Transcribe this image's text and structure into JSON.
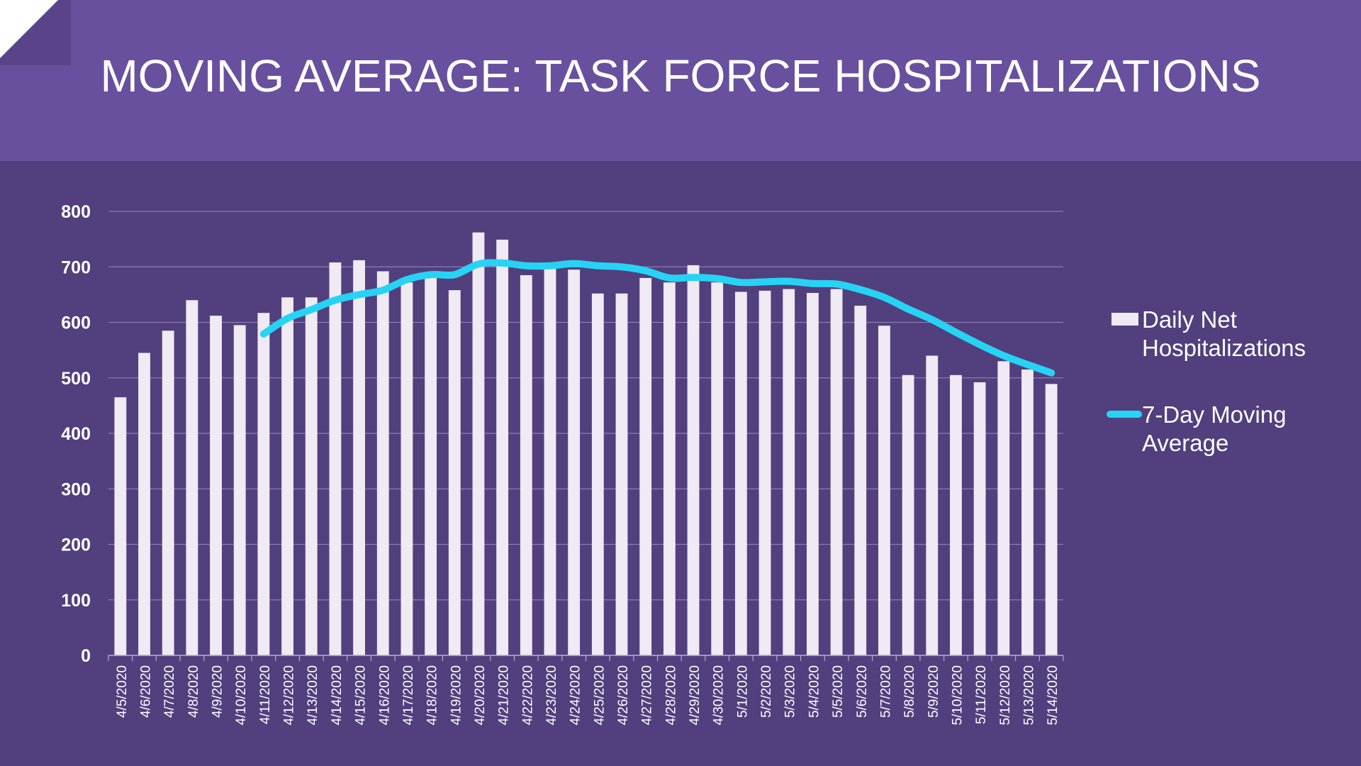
{
  "header": {
    "title": "MOVING AVERAGE: TASK FORCE HOSPITALIZATIONS"
  },
  "chart_data": {
    "type": "bar",
    "categories": [
      "4/5/2020",
      "4/6/2020",
      "4/7/2020",
      "4/8/2020",
      "4/9/2020",
      "4/10/2020",
      "4/11/2020",
      "4/12/2020",
      "4/13/2020",
      "4/14/2020",
      "4/15/2020",
      "4/16/2020",
      "4/17/2020",
      "4/18/2020",
      "4/19/2020",
      "4/20/2020",
      "4/21/2020",
      "4/22/2020",
      "4/23/2020",
      "4/24/2020",
      "4/25/2020",
      "4/26/2020",
      "4/27/2020",
      "4/28/2020",
      "4/29/2020",
      "4/30/2020",
      "5/1/2020",
      "5/2/2020",
      "5/3/2020",
      "5/4/2020",
      "5/5/2020",
      "5/6/2020",
      "5/7/2020",
      "5/8/2020",
      "5/9/2020",
      "5/10/2020",
      "5/11/2020",
      "5/12/2020",
      "5/13/2020",
      "5/14/2020"
    ],
    "series": [
      {
        "name": "Daily Net Hospitalizations",
        "type": "bar",
        "color": "#efeaf3",
        "values": [
          465,
          545,
          585,
          640,
          612,
          595,
          617,
          645,
          645,
          708,
          712,
          692,
          672,
          680,
          658,
          762,
          749,
          685,
          698,
          695,
          652,
          652,
          680,
          672,
          703,
          672,
          655,
          657,
          660,
          653,
          660,
          630,
          594,
          505,
          540,
          505,
          492,
          530,
          515,
          489
        ]
      },
      {
        "name": "7-Day Moving Average",
        "type": "line",
        "color": "#27d3f4",
        "values": [
          null,
          null,
          null,
          null,
          null,
          null,
          579,
          607,
          623,
          640,
          650,
          658,
          677,
          686,
          686,
          705,
          707,
          702,
          702,
          706,
          702,
          700,
          693,
          680,
          681,
          679,
          672,
          673,
          674,
          670,
          669,
          659,
          645,
          624,
          605,
          582,
          560,
          540,
          524,
          509
        ]
      }
    ],
    "ylim": [
      0,
      800
    ],
    "yticks": [
      0,
      100,
      200,
      300,
      400,
      500,
      600,
      700,
      800
    ],
    "grid": true,
    "legend": "right",
    "title": "",
    "xlabel": "",
    "ylabel": ""
  }
}
